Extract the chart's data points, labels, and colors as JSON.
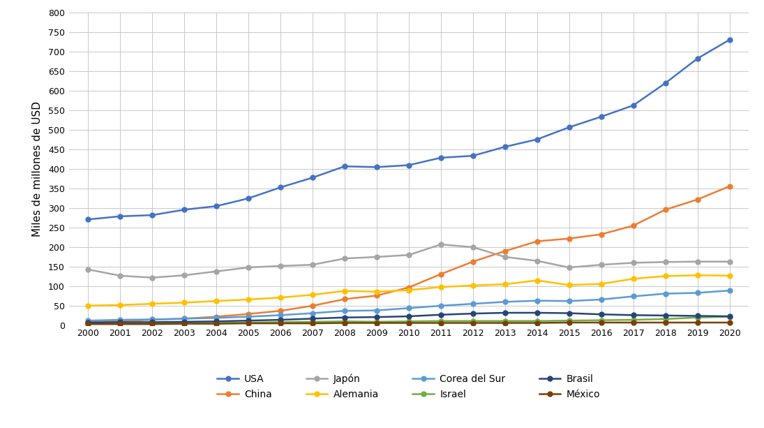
{
  "years": [
    2000,
    2001,
    2002,
    2003,
    2004,
    2005,
    2006,
    2007,
    2008,
    2009,
    2010,
    2011,
    2012,
    2013,
    2014,
    2015,
    2016,
    2017,
    2018,
    2019,
    2020
  ],
  "series": [
    {
      "label": "USA",
      "values": [
        271,
        279,
        282,
        296,
        305,
        325,
        353,
        378,
        407,
        405,
        410,
        429,
        434,
        457,
        476,
        507,
        534,
        563,
        620,
        683,
        731
      ],
      "color": "#4472C4",
      "marker": "o"
    },
    {
      "label": "China",
      "values": [
        9,
        11,
        14,
        17,
        22,
        29,
        37,
        50,
        67,
        76,
        97,
        131,
        163,
        190,
        215,
        222,
        233,
        255,
        296,
        322,
        356
      ],
      "color": "#ED7D31",
      "marker": "o"
    },
    {
      "label": "Japón",
      "values": [
        143,
        127,
        122,
        128,
        138,
        148,
        152,
        155,
        171,
        175,
        180,
        207,
        200,
        175,
        165,
        148,
        155,
        160,
        162,
        163,
        163
      ],
      "color": "#A5A5A5",
      "marker": "o"
    },
    {
      "label": "Alemania",
      "values": [
        50,
        52,
        55,
        58,
        62,
        66,
        71,
        78,
        88,
        86,
        90,
        98,
        102,
        105,
        115,
        103,
        106,
        119,
        126,
        128,
        127
      ],
      "color": "#FFC000",
      "marker": "o"
    },
    {
      "label": "Corea del Sur",
      "values": [
        12,
        14,
        15,
        17,
        19,
        22,
        26,
        31,
        37,
        38,
        44,
        50,
        55,
        60,
        63,
        62,
        66,
        74,
        81,
        83,
        89
      ],
      "color": "#5B9BD5",
      "marker": "o"
    },
    {
      "label": "Israel",
      "values": [
        6,
        6,
        5,
        6,
        6,
        7,
        8,
        9,
        10,
        9,
        10,
        11,
        11,
        11,
        11,
        12,
        13,
        14,
        16,
        20,
        22
      ],
      "color": "#70AD47",
      "marker": "o"
    },
    {
      "label": "Brasil",
      "values": [
        7,
        8,
        8,
        9,
        10,
        12,
        14,
        17,
        20,
        21,
        23,
        27,
        30,
        32,
        32,
        31,
        28,
        26,
        25,
        24,
        23
      ],
      "color": "#264478",
      "marker": "o"
    },
    {
      "label": "México",
      "values": [
        3,
        3,
        3,
        4,
        4,
        5,
        5,
        5,
        6,
        6,
        6,
        6,
        6,
        6,
        6,
        7,
        7,
        7,
        7,
        7,
        7
      ],
      "color": "#7B3F00",
      "marker": "o"
    }
  ],
  "ylabel": "Miles de millones de USD",
  "ylim": [
    0,
    800
  ],
  "yticks": [
    0,
    50,
    100,
    150,
    200,
    250,
    300,
    350,
    400,
    450,
    500,
    550,
    600,
    650,
    700,
    750,
    800
  ],
  "background_color": "#ffffff",
  "grid_color": "#c8c8c8",
  "marker_size": 5,
  "line_width": 1.8,
  "ylabel_fontsize": 11,
  "tick_fontsize": 9,
  "legend_fontsize": 10
}
